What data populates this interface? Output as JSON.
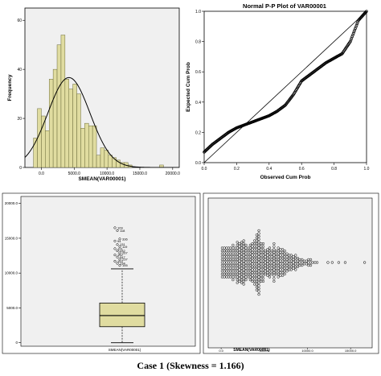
{
  "caption": "Case 1 (Skewness = 1.166)",
  "colors": {
    "bar_fill": "#e0dca0",
    "bar_stroke": "#6b6b3a",
    "panel_bg": "#f0f0f0",
    "line": "#000000"
  },
  "chart_data": [
    {
      "type": "bar",
      "subtype": "histogram",
      "title": "",
      "xlabel": "SMEAN(VAR00001)",
      "ylabel": "Frequency",
      "xlim": [
        -2500,
        21000
      ],
      "ylim": [
        0,
        65
      ],
      "xticks": [
        "0.0",
        "5000.0",
        "10000.0",
        "15000.0",
        "20000.0"
      ],
      "yticks": [
        "0",
        "20",
        "40",
        "60"
      ],
      "bin_width": 600,
      "bin_start": -1200,
      "values": [
        12,
        24,
        21,
        15,
        36,
        40,
        50,
        54,
        36,
        32,
        34,
        30,
        16,
        18,
        17,
        17,
        5,
        8,
        7,
        5,
        4,
        3,
        2,
        2,
        1,
        0,
        0,
        0,
        0,
        0,
        0,
        0,
        1
      ],
      "normal_curve": {
        "mean": 4200,
        "sd": 3200
      }
    },
    {
      "type": "line",
      "subtype": "p-p plot",
      "title": "Normal P-P Plot of VAR00001",
      "xlabel": "Observed Cum Prob",
      "ylabel": "Expected Cum Prob",
      "xlim": [
        0,
        1
      ],
      "ylim": [
        0,
        1
      ],
      "xticks": [
        "0.0",
        "0.2",
        "0.4",
        "0.6",
        "0.8",
        "1.0"
      ],
      "yticks": [
        "0.0",
        "0.2",
        "0.4",
        "0.6",
        "0.8",
        "1.0"
      ],
      "curve": {
        "x": [
          0.0,
          0.05,
          0.1,
          0.15,
          0.2,
          0.25,
          0.3,
          0.35,
          0.4,
          0.45,
          0.5,
          0.55,
          0.6,
          0.65,
          0.7,
          0.75,
          0.8,
          0.85,
          0.9,
          0.95,
          1.0
        ],
        "y": [
          0.07,
          0.12,
          0.16,
          0.2,
          0.23,
          0.25,
          0.27,
          0.29,
          0.31,
          0.34,
          0.38,
          0.45,
          0.54,
          0.58,
          0.62,
          0.66,
          0.69,
          0.72,
          0.8,
          0.94,
          1.0
        ]
      }
    },
    {
      "type": "boxplot",
      "title": "",
      "xlabel": "SMEAN(VAR00001)",
      "ylim": [
        -500,
        21000
      ],
      "yticks": [
        "0",
        "5000.0",
        "10000.0",
        "15000.0",
        "20000.0"
      ],
      "box": {
        "whisker_low": 0,
        "q1": 2300,
        "median": 3900,
        "q3": 5700,
        "whisker_high": 10600
      },
      "outliers": [
        {
          "label": "109",
          "value": 16500
        },
        {
          "label": "118",
          "value": 16100
        },
        {
          "label": "336",
          "value": 14900
        },
        {
          "label": "94",
          "value": 14600
        },
        {
          "label": "131",
          "value": 14100
        },
        {
          "label": "119",
          "value": 13800
        },
        {
          "label": "121",
          "value": 13500
        },
        {
          "label": "132",
          "value": 13200
        },
        {
          "label": "267",
          "value": 12900
        },
        {
          "label": "152",
          "value": 12600
        },
        {
          "label": "347",
          "value": 12300
        },
        {
          "label": "237",
          "value": 12000
        },
        {
          "label": "153",
          "value": 11700
        },
        {
          "label": "134",
          "value": 11400
        },
        {
          "label": "155",
          "value": 11100
        }
      ]
    },
    {
      "type": "scatter",
      "subtype": "dot plot",
      "title": "",
      "xlabel": "SMEAN(VAR00001)",
      "xlim": [
        -1500,
        17500
      ],
      "xticks": [
        "0.0",
        "5000.0",
        "10000.0",
        "15000.0"
      ],
      "bin_width": 250,
      "bin_start": 0,
      "counts": [
        11,
        11,
        11,
        11,
        11,
        13,
        11,
        15,
        14,
        15,
        16,
        13,
        11,
        13,
        14,
        16,
        20,
        23,
        14,
        14,
        9,
        10,
        11,
        9,
        14,
        9,
        11,
        10,
        10,
        9,
        7,
        6,
        6,
        5,
        6,
        4,
        3,
        3,
        2,
        2,
        3,
        3,
        1,
        1,
        1,
        0,
        0,
        0,
        0,
        1,
        0,
        1,
        0,
        0,
        1,
        0,
        0,
        1,
        0,
        0,
        0,
        0,
        0,
        0,
        0,
        0,
        1
      ]
    }
  ]
}
